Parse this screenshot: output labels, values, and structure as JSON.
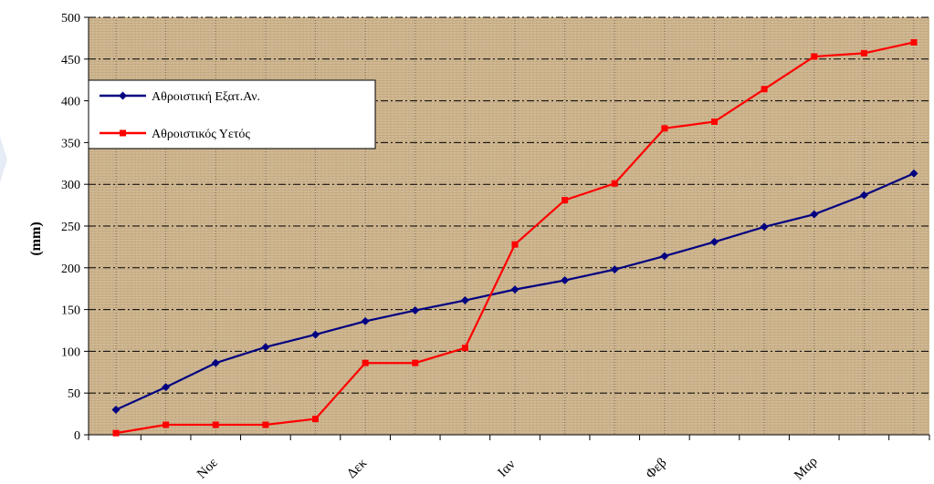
{
  "chart_data": {
    "type": "line",
    "ylabel": "(mm)",
    "xlabel": "",
    "title": "",
    "ylim": [
      0,
      500
    ],
    "yticks": [
      0,
      50,
      100,
      150,
      200,
      250,
      300,
      350,
      400,
      450,
      500
    ],
    "x_tick_labels": [
      "Νοε",
      "Δεκ",
      "Ιαν",
      "Φεβ",
      "Μαρ"
    ],
    "x_tick_label_positions": [
      2,
      5,
      8,
      11,
      14
    ],
    "grid": true,
    "legend_position": "upper-left",
    "series": [
      {
        "name": "Αθροιστική Εξατ.Αν.",
        "color": "#000080",
        "marker": "diamond",
        "values": [
          30,
          57,
          86,
          105,
          120,
          136,
          149,
          161,
          174,
          185,
          198,
          214,
          231,
          249,
          264,
          287,
          313
        ]
      },
      {
        "name": "Αθροιστικός Υετός",
        "color": "#ff0000",
        "marker": "square",
        "values": [
          2,
          12,
          12,
          12,
          19,
          86,
          86,
          104,
          228,
          281,
          301,
          367,
          375,
          414,
          453,
          457,
          470
        ]
      }
    ]
  }
}
